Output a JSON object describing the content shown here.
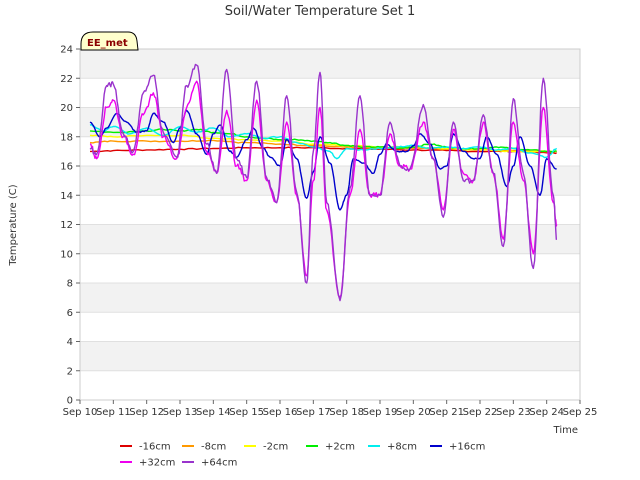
{
  "chart_data": {
    "type": "line",
    "title": "Soil/Water Temperature Set 1",
    "xlabel": "Time",
    "ylabel": "Temperature (C)",
    "site_label": "EE_met",
    "x_ticks": [
      "Sep 10",
      "Sep 11",
      "Sep 12",
      "Sep 13",
      "Sep 14",
      "Sep 15",
      "Sep 16",
      "Sep 17",
      "Sep 18",
      "Sep 19",
      "Sep 20",
      "Sep 21",
      "Sep 22",
      "Sep 23",
      "Sep 24",
      "Sep 25"
    ],
    "xlim": [
      "Sep 10",
      "Sep 25"
    ],
    "ylim": [
      0,
      24
    ],
    "y_ticks": [
      0,
      2,
      4,
      6,
      8,
      10,
      12,
      14,
      16,
      18,
      20,
      22,
      24
    ],
    "grid": "horizontal bands",
    "legend_position": "bottom",
    "series": [
      {
        "name": "-16cm",
        "color": "#dd0000",
        "x": [
          10.3,
          11,
          12,
          13,
          14,
          15,
          16,
          17,
          18,
          19,
          20,
          21,
          22,
          23,
          24,
          24.3
        ],
        "y": [
          17.0,
          17.05,
          17.1,
          17.15,
          17.2,
          17.25,
          17.25,
          17.25,
          17.2,
          17.15,
          17.1,
          17.05,
          17.0,
          17.0,
          16.9,
          16.9
        ]
      },
      {
        "name": "-8cm",
        "color": "#ff9900",
        "x": [
          10.3,
          11,
          12,
          13,
          14,
          15,
          16,
          17,
          18,
          19,
          20,
          21,
          22,
          23,
          24,
          24.3
        ],
        "y": [
          17.6,
          17.7,
          17.7,
          17.7,
          17.75,
          17.6,
          17.5,
          17.4,
          17.3,
          17.2,
          17.2,
          17.15,
          17.1,
          17.05,
          17.0,
          17.0
        ]
      },
      {
        "name": "-2cm",
        "color": "#ffff00",
        "x": [
          10.3,
          11,
          12,
          13,
          14,
          15,
          16,
          17,
          18,
          19,
          20,
          21,
          22,
          23,
          24,
          24.3
        ],
        "y": [
          18.1,
          18.0,
          18.1,
          18.1,
          17.9,
          17.8,
          17.7,
          17.5,
          17.4,
          17.3,
          17.3,
          17.2,
          17.1,
          17.0,
          17.0,
          17.0
        ]
      },
      {
        "name": "+2cm",
        "color": "#00ee00",
        "x": [
          10.3,
          11,
          12,
          12.5,
          13,
          13.5,
          14,
          14.5,
          15,
          15.5,
          16,
          16.5,
          17,
          17.5,
          18,
          18.5,
          19,
          19.5,
          20,
          20.5,
          21,
          21.5,
          22,
          22.5,
          23,
          23.5,
          24,
          24.3
        ],
        "y": [
          18.4,
          18.3,
          18.4,
          18.5,
          18.4,
          18.5,
          18.3,
          18.2,
          18.0,
          17.9,
          17.8,
          17.8,
          17.7,
          17.6,
          17.4,
          17.3,
          17.3,
          17.2,
          17.3,
          17.5,
          17.3,
          17.2,
          17.2,
          17.3,
          17.2,
          17.1,
          17.0,
          17.0
        ]
      },
      {
        "name": "+8cm",
        "color": "#00eeee",
        "x": [
          10.3,
          10.7,
          11,
          11.5,
          12,
          12.5,
          13,
          13.5,
          14,
          14.5,
          15,
          15.5,
          16,
          16.5,
          17,
          17.5,
          17.7,
          18,
          18.5,
          19,
          19.5,
          20,
          20.5,
          21,
          21.5,
          22,
          22.5,
          23,
          23.5,
          24,
          24.3
        ],
        "y": [
          18.8,
          18.4,
          18.7,
          18.2,
          18.6,
          18.1,
          18.7,
          18.3,
          18.6,
          18.0,
          18.2,
          17.9,
          18.0,
          17.6,
          17.3,
          17.0,
          16.5,
          17.2,
          17.1,
          17.2,
          17.3,
          17.4,
          17.2,
          17.3,
          17.2,
          17.3,
          17.1,
          17.2,
          16.9,
          16.6,
          17.2
        ]
      },
      {
        "name": "+16cm",
        "color": "#0000cc",
        "x": [
          10.3,
          10.6,
          10.8,
          11.1,
          11.4,
          11.7,
          12,
          12.2,
          12.5,
          12.8,
          13,
          13.2,
          13.5,
          13.8,
          14,
          14.2,
          14.5,
          14.7,
          15,
          15.2,
          15.5,
          15.7,
          16,
          16.2,
          16.5,
          16.8,
          17,
          17.2,
          17.5,
          17.8,
          18,
          18.2,
          18.5,
          18.8,
          19,
          19.2,
          19.5,
          19.8,
          20,
          20.2,
          20.5,
          20.8,
          21,
          21.2,
          21.5,
          21.8,
          22,
          22.2,
          22.5,
          22.8,
          23,
          23.2,
          23.5,
          23.8,
          24,
          24.3
        ],
        "y": [
          19.0,
          18.0,
          18.6,
          19.6,
          19.0,
          18.3,
          18.4,
          19.6,
          19.0,
          17.6,
          18.6,
          19.8,
          18.2,
          16.8,
          18.2,
          18.8,
          17.0,
          16.6,
          17.8,
          18.6,
          17.2,
          16.6,
          16.0,
          17.8,
          16.5,
          13.8,
          15.6,
          18.0,
          16.2,
          13.0,
          14.0,
          16.5,
          16.2,
          15.5,
          16.8,
          17.5,
          17.0,
          17.0,
          17.4,
          18.2,
          17.5,
          15.8,
          16.0,
          18.2,
          17.0,
          16.5,
          16.5,
          18.0,
          16.8,
          14.6,
          16.0,
          18.0,
          16.0,
          14.0,
          16.5,
          15.8
        ]
      },
      {
        "name": "+32cm",
        "color": "#ee00ee",
        "x": [
          10.3,
          10.5,
          10.8,
          11.0,
          11.3,
          11.6,
          11.9,
          12.2,
          12.5,
          12.9,
          13.2,
          13.5,
          13.8,
          14.1,
          14.4,
          14.7,
          15.0,
          15.3,
          15.6,
          15.9,
          16.2,
          16.5,
          16.8,
          17.0,
          17.2,
          17.4,
          17.8,
          18.1,
          18.4,
          18.7,
          19.0,
          19.3,
          19.6,
          19.9,
          20.3,
          20.6,
          20.9,
          21.2,
          21.5,
          21.8,
          22.1,
          22.4,
          22.7,
          23.0,
          23.3,
          23.6,
          23.9,
          24.2,
          24.3
        ],
        "y": [
          17.5,
          16.5,
          20.0,
          20.5,
          18.0,
          16.8,
          19.5,
          21.0,
          18.0,
          16.5,
          20.0,
          21.8,
          17.0,
          15.5,
          19.8,
          16.0,
          15.0,
          20.5,
          15.0,
          13.5,
          19.0,
          14.0,
          8.5,
          15.0,
          20.0,
          13.0,
          7.0,
          14.0,
          18.5,
          14.0,
          14.0,
          18.2,
          16.0,
          15.8,
          19.0,
          16.5,
          13.0,
          18.5,
          15.5,
          15.0,
          19.0,
          15.5,
          11.0,
          19.0,
          15.0,
          10.0,
          20.0,
          13.5,
          12.0
        ]
      },
      {
        "name": "+64cm",
        "color": "#9933cc",
        "x": [
          10.3,
          10.5,
          10.8,
          11.0,
          11.3,
          11.6,
          11.9,
          12.2,
          12.5,
          12.9,
          13.2,
          13.5,
          13.8,
          14.1,
          14.4,
          14.7,
          15.0,
          15.3,
          15.6,
          15.9,
          16.2,
          16.5,
          16.8,
          17.0,
          17.2,
          17.4,
          17.8,
          18.1,
          18.4,
          18.7,
          19.0,
          19.3,
          19.6,
          19.9,
          20.3,
          20.6,
          20.9,
          21.2,
          21.5,
          21.8,
          22.1,
          22.4,
          22.7,
          23.0,
          23.3,
          23.6,
          23.9,
          24.2,
          24.3
        ],
        "y": [
          17.2,
          16.8,
          21.5,
          21.6,
          18.2,
          17.0,
          21.0,
          22.2,
          18.3,
          16.6,
          21.5,
          22.9,
          17.5,
          15.5,
          22.6,
          16.5,
          15.2,
          21.8,
          15.2,
          13.5,
          20.8,
          14.2,
          8.0,
          17.0,
          22.4,
          13.5,
          6.8,
          14.5,
          20.8,
          14.0,
          14.0,
          19.0,
          16.0,
          15.8,
          20.2,
          16.5,
          12.5,
          19.0,
          15.0,
          15.0,
          19.5,
          15.5,
          10.5,
          20.6,
          15.5,
          9.0,
          22.0,
          14.0,
          11.0
        ]
      }
    ]
  }
}
